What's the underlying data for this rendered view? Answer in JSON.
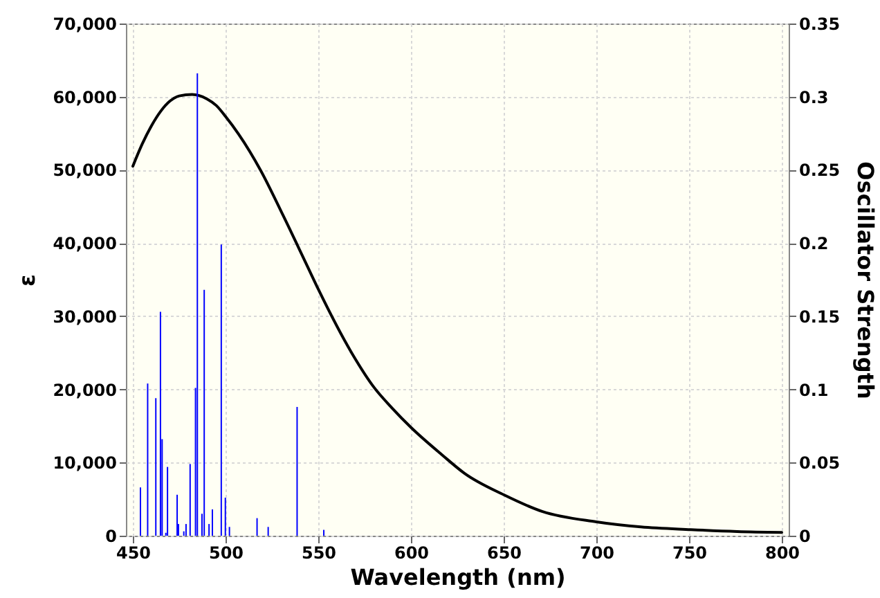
{
  "chart_data": {
    "type": "line",
    "xlabel": "Wavelength (nm)",
    "ylabel": "ε",
    "y2label": "Oscillator Strength",
    "xlim": [
      450,
      800
    ],
    "xticks": [
      450,
      500,
      550,
      600,
      650,
      700,
      750,
      800
    ],
    "ylim": [
      0,
      70000
    ],
    "yticks": [
      0,
      {
        "value": 10000,
        "label": "10,000"
      },
      {
        "value": 20000,
        "label": "20,000"
      },
      {
        "value": 30000,
        "label": "30,000"
      },
      {
        "value": 40000,
        "label": "40,000"
      },
      {
        "value": 50000,
        "label": "50,000"
      },
      {
        "value": 60000,
        "label": "60,000"
      },
      {
        "value": 70000,
        "label": "70,000"
      }
    ],
    "y2lim": [
      0,
      0.35
    ],
    "y2ticks": [
      0,
      0.05,
      0.1,
      0.15,
      0.2,
      0.25,
      0.3,
      0.35
    ],
    "grid": true,
    "series": [
      {
        "color": "#000000",
        "x": [
          450,
          455,
          460,
          465,
          470,
          475,
          482,
          490,
          495,
          500,
          507,
          519,
          531,
          544,
          550,
          568,
          580,
          590,
          600,
          617,
          629,
          650,
          671,
          700,
          724,
          751,
          776,
          800
        ],
        "values": [
          50500,
          53500,
          56000,
          58000,
          59400,
          60100,
          60300,
          59700,
          58800,
          57300,
          54900,
          49900,
          43800,
          36900,
          33700,
          25000,
          20300,
          17400,
          14800,
          11000,
          8500,
          5600,
          3300,
          1900,
          1200,
          830,
          570,
          450
        ]
      },
      {
        "type": "bar",
        "axis": "y2",
        "color": "#0000ff",
        "x": [
          454.1,
          458.0,
          462.4,
          464.9,
          465.8,
          467.8,
          468.7,
          473.9,
          474.6,
          477.5,
          478.7,
          480.9,
          483.8,
          484.8,
          487.3,
          488.5,
          491.1,
          492.9,
          497.7,
          499.9,
          502.1,
          517.0,
          523.0,
          538.6,
          553.0
        ],
        "values": [
          0.033,
          0.104,
          0.094,
          0.153,
          0.066,
          0.002,
          0.047,
          0.028,
          0.008,
          0.003,
          0.008,
          0.049,
          0.101,
          0.316,
          0.015,
          0.168,
          0.008,
          0.018,
          0.199,
          0.026,
          0.006,
          0.012,
          0.006,
          0.088,
          0.004
        ]
      }
    ]
  }
}
